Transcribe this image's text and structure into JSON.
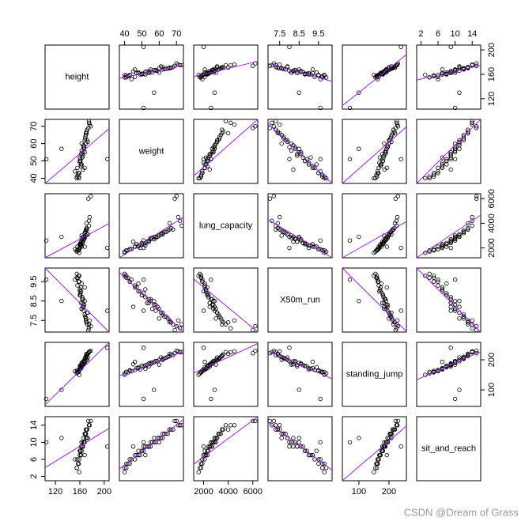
{
  "chart_data": {
    "type": "scatter_matrix",
    "point_color": "#000000",
    "smooth_color": "#a020f0",
    "variables": [
      {
        "name": "height",
        "lim": [
          103,
          208
        ],
        "ticks": [
          120,
          160,
          200
        ],
        "values": [
          165,
          160,
          170,
          158,
          172,
          168,
          163,
          175,
          155,
          161,
          166,
          169,
          159,
          171,
          164,
          162,
          178,
          157,
          167,
          173,
          160,
          165,
          152,
          176,
          163,
          168,
          170,
          156,
          161,
          174,
          166,
          159,
          169,
          164,
          171,
          158,
          162,
          167,
          175,
          160,
          105,
          205,
          130,
          165,
          163,
          172,
          168,
          155,
          170,
          162
        ]
      },
      {
        "name": "weight",
        "lim": [
          37,
          74
        ],
        "ticks": [
          40,
          50,
          60,
          70
        ],
        "values": [
          45,
          52,
          60,
          41,
          68,
          55,
          48,
          72,
          40,
          50,
          58,
          63,
          43,
          66,
          54,
          47,
          70,
          42,
          57,
          61,
          49,
          53,
          44,
          71,
          56,
          62,
          65,
          46,
          51,
          69,
          59,
          40,
          64,
          52,
          67,
          43,
          48,
          58,
          73,
          50,
          51,
          51,
          57,
          55,
          60,
          62,
          46,
          41,
          66,
          54
        ]
      },
      {
        "name": "lung_capacity",
        "lim": [
          1200,
          6400
        ],
        "ticks": [
          2000,
          4000,
          6000
        ],
        "values": [
          2500,
          2200,
          3000,
          1800,
          3500,
          2800,
          2100,
          4200,
          1700,
          2400,
          2900,
          3300,
          1900,
          4000,
          2600,
          2300,
          6200,
          1800,
          2700,
          3100,
          2000,
          2500,
          1900,
          4500,
          2800,
          3200,
          3400,
          2100,
          2300,
          6000,
          2900,
          1600,
          3300,
          2400,
          3600,
          1900,
          2200,
          2800,
          3800,
          2300,
          2600,
          2000,
          2900,
          2700,
          3000,
          3100,
          2100,
          1800,
          3500,
          2500
        ]
      },
      {
        "name": "X50m_run",
        "lim": [
          6.9,
          10.2
        ],
        "ticks": [
          7.5,
          8.5,
          9.5
        ],
        "values": [
          8.2,
          9.1,
          7.6,
          9.8,
          7.3,
          8.5,
          9.4,
          7.1,
          9.9,
          8.8,
          8.0,
          7.7,
          9.5,
          7.4,
          8.6,
          9.2,
          7.2,
          9.7,
          8.3,
          7.9,
          9.0,
          8.4,
          9.6,
          7.5,
          8.1,
          7.8,
          7.6,
          9.3,
          8.9,
          7.0,
          8.2,
          9.8,
          7.7,
          8.7,
          7.4,
          9.5,
          9.0,
          8.3,
          7.3,
          8.8,
          9.6,
          8.0,
          8.5,
          8.6,
          8.1,
          7.9,
          9.2,
          9.7,
          7.5,
          8.4
        ]
      },
      {
        "name": "standing_jump",
        "lim": [
          45,
          258
        ],
        "ticks": [
          100,
          200
        ],
        "values": [
          185,
          170,
          200,
          160,
          215,
          190,
          175,
          225,
          155,
          180,
          195,
          205,
          165,
          220,
          188,
          172,
          230,
          158,
          192,
          208,
          168,
          183,
          162,
          228,
          190,
          203,
          210,
          166,
          178,
          222,
          195,
          150,
          207,
          182,
          218,
          163,
          172,
          196,
          226,
          180,
          70,
          240,
          100,
          186,
          184,
          200,
          193,
          160,
          212,
          178
        ]
      },
      {
        "name": "sit_and_reach",
        "lim": [
          1,
          16
        ],
        "ticks": [
          2,
          6,
          10,
          14
        ],
        "values": [
          9,
          7,
          11,
          5,
          13,
          10,
          8,
          14,
          4,
          8,
          10,
          12,
          6,
          13,
          9,
          7,
          15,
          5,
          10,
          11,
          7,
          9,
          6,
          14,
          10,
          12,
          12,
          6,
          8,
          15,
          11,
          3,
          12,
          9,
          13,
          5,
          7,
          10,
          14,
          8,
          10,
          9,
          11,
          9,
          10,
          11,
          7,
          4,
          13,
          9
        ]
      }
    ]
  },
  "watermark": "CSDN @Dream of Grass"
}
